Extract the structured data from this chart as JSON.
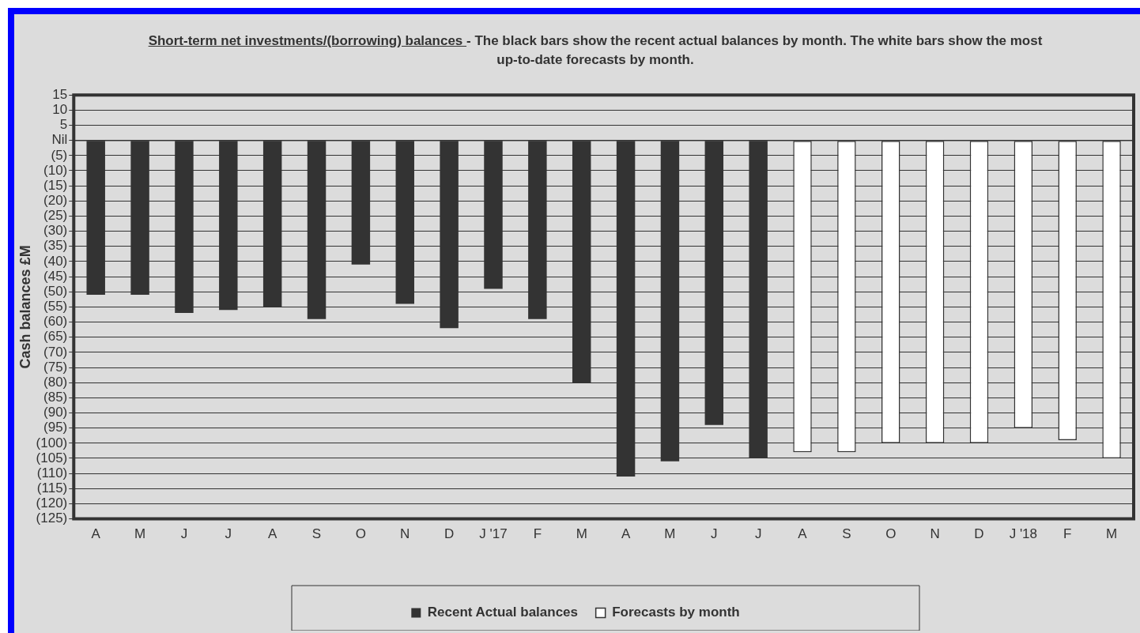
{
  "chart_data": {
    "type": "bar",
    "title": "Short-term net investments/(borrowing) balances ",
    "subtitle": "- The black bars show the recent actual balances by month. The white bars show the most up-to-date forecasts by month.",
    "ylabel": "Cash balances £M",
    "categories": [
      "A",
      "M",
      "J",
      "J",
      "A",
      "S",
      "O",
      "N",
      "D",
      "J '17",
      "F",
      "M",
      "A",
      "M",
      "J",
      "J",
      "A",
      "S",
      "O",
      "N",
      "D",
      "J '18",
      "F",
      "M"
    ],
    "series": [
      {
        "name": "Recent Actual balances",
        "color": "#333333",
        "values": [
          -51,
          -51,
          -57,
          -56,
          -55,
          -59,
          -41,
          -54,
          -62,
          -49,
          -59,
          -80,
          -111,
          -106,
          -94,
          -105,
          null,
          null,
          null,
          null,
          null,
          null,
          null,
          null
        ]
      },
      {
        "name": "Forecasts by month",
        "color": "#ffffff",
        "values": [
          null,
          null,
          null,
          null,
          null,
          null,
          null,
          null,
          null,
          null,
          null,
          null,
          null,
          null,
          null,
          null,
          -103,
          -103,
          -100,
          -100,
          -100,
          -95,
          -99,
          -105
        ]
      }
    ],
    "ylim": [
      -125,
      15
    ],
    "yticks": [
      15,
      10,
      5,
      {
        "value": 0,
        "label": "Nil"
      },
      {
        "value": -5,
        "label": "(5)"
      },
      {
        "value": -10,
        "label": "(10)"
      },
      {
        "value": -15,
        "label": "(15)"
      },
      {
        "value": -20,
        "label": "(20)"
      },
      {
        "value": -25,
        "label": "(25)"
      },
      {
        "value": -30,
        "label": "(30)"
      },
      {
        "value": -35,
        "label": "(35)"
      },
      {
        "value": -40,
        "label": "(40)"
      },
      {
        "value": -45,
        "label": "(45)"
      },
      {
        "value": -50,
        "label": "(50)"
      },
      {
        "value": -55,
        "label": "(55)"
      },
      {
        "value": -60,
        "label": "(60)"
      },
      {
        "value": -65,
        "label": "(65)"
      },
      {
        "value": -70,
        "label": "(70)"
      },
      {
        "value": -75,
        "label": "(75)"
      },
      {
        "value": -80,
        "label": "(80)"
      },
      {
        "value": -85,
        "label": "(85)"
      },
      {
        "value": -90,
        "label": "(90)"
      },
      {
        "value": -95,
        "label": "(95)"
      },
      {
        "value": -100,
        "label": "(100)"
      },
      {
        "value": -105,
        "label": "(105)"
      },
      {
        "value": -110,
        "label": "(110)"
      },
      {
        "value": -115,
        "label": "(115)"
      },
      {
        "value": -120,
        "label": "(120)"
      },
      {
        "value": -125,
        "label": "(125)"
      }
    ],
    "grid": "y",
    "legend": "bottom"
  }
}
